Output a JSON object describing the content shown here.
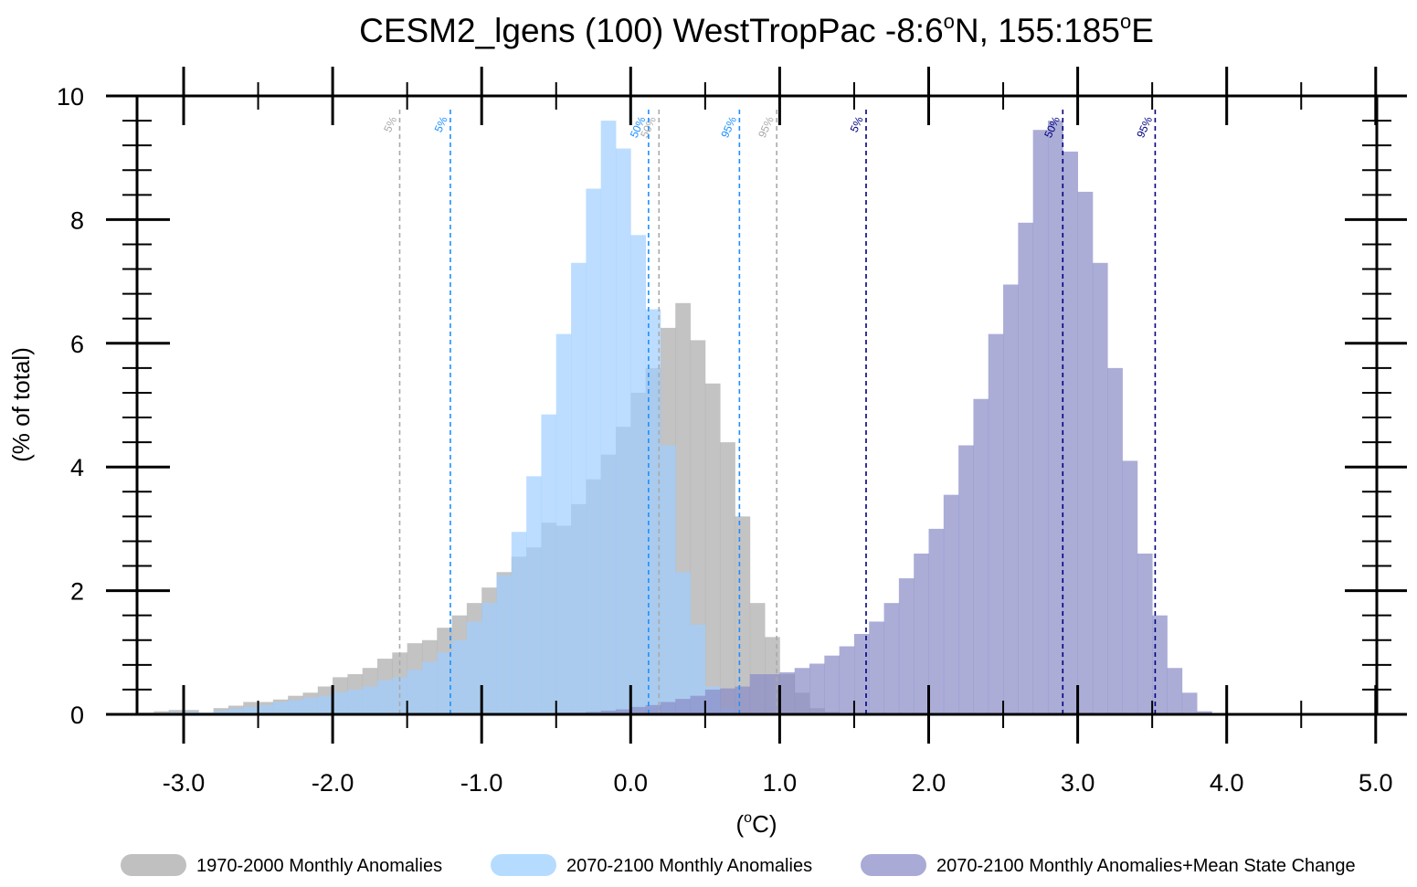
{
  "chart_data": {
    "type": "bar",
    "title": "CESM2_lgens (100) WestTropPac  -8:6°N, 155:185°E",
    "title_parts": {
      "prefix": "CESM2_lgens (100) WestTropPac  -8:6",
      "deg1": "o",
      "mid": "N, 155:185",
      "deg2": "o",
      "suffix": "E"
    },
    "xlabel": "(°C)",
    "xlabel_parts": {
      "open": "(",
      "deg": "o",
      "close": "C)"
    },
    "ylabel": "(% of total)",
    "xlim": [
      -3.3,
      5.0
    ],
    "ylim": [
      0,
      10
    ],
    "x_ticks": [
      -3.0,
      -2.0,
      -1.0,
      0.0,
      1.0,
      2.0,
      3.0,
      4.0,
      5.0
    ],
    "x_tick_labels": [
      "-3.0",
      "-2.0",
      "-1.0",
      "0.0",
      "1.0",
      "2.0",
      "3.0",
      "4.0",
      "5.0"
    ],
    "y_ticks": [
      0,
      2,
      4,
      6,
      8,
      10
    ],
    "y_tick_labels": [
      "0",
      "2",
      "4",
      "6",
      "8",
      "10"
    ],
    "bin_start": -3.3,
    "bin_width": 0.1,
    "series": [
      {
        "name": "1970-2000 Monthly Anomalies",
        "color": "#a9a9a9",
        "values": [
          0.03,
          0.05,
          0.07,
          0.07,
          0.03,
          0.1,
          0.14,
          0.2,
          0.2,
          0.24,
          0.3,
          0.35,
          0.45,
          0.6,
          0.65,
          0.75,
          0.9,
          1.0,
          1.15,
          1.2,
          1.4,
          1.6,
          1.8,
          2.05,
          2.3,
          2.55,
          2.7,
          3.1,
          3.05,
          3.4,
          3.8,
          4.2,
          4.65,
          5.2,
          5.6,
          6.25,
          6.65,
          6.05,
          5.35,
          4.4,
          3.2,
          1.8,
          1.25,
          0.65,
          0.35,
          0.1,
          0.04,
          0.02
        ]
      },
      {
        "name": "2070-2100 Monthly Anomalies",
        "color": "#9fcfff",
        "values": [
          0.01,
          0.02,
          0.03,
          0.04,
          0.03,
          0.06,
          0.09,
          0.12,
          0.15,
          0.2,
          0.23,
          0.27,
          0.3,
          0.36,
          0.4,
          0.45,
          0.55,
          0.6,
          0.72,
          0.85,
          1.0,
          1.2,
          1.5,
          1.8,
          2.25,
          2.95,
          3.85,
          4.85,
          6.15,
          7.3,
          8.5,
          9.6,
          9.15,
          7.75,
          6.55,
          4.35,
          2.3,
          1.45,
          0.45,
          0.1
        ]
      },
      {
        "name": "2070-2100 Monthly Anomalies+Mean State Change",
        "color": "#8b8ec8",
        "start_bin": 26,
        "values": [
          0.02,
          0.02,
          0.03,
          0.03,
          0.04,
          0.06,
          0.08,
          0.12,
          0.15,
          0.2,
          0.25,
          0.3,
          0.4,
          0.42,
          0.45,
          0.65,
          0.65,
          0.68,
          0.75,
          0.82,
          0.95,
          1.1,
          1.3,
          1.5,
          1.8,
          2.2,
          2.6,
          3.0,
          3.55,
          4.35,
          5.1,
          6.15,
          6.95,
          7.95,
          9.45,
          9.6,
          9.1,
          8.45,
          7.3,
          5.6,
          4.1,
          2.6,
          1.6,
          0.75,
          0.35,
          0.05,
          0.02,
          0.01
        ]
      }
    ],
    "percentile_lines": [
      {
        "series": "1970-2000 Monthly Anomalies",
        "label": "5%",
        "x": -1.55,
        "color": "#a9a9a9"
      },
      {
        "series": "1970-2000 Monthly Anomalies",
        "label": "50%",
        "x": 0.19,
        "color": "#a9a9a9"
      },
      {
        "series": "1970-2000 Monthly Anomalies",
        "label": "95%",
        "x": 0.98,
        "color": "#a9a9a9"
      },
      {
        "series": "2070-2100 Monthly Anomalies",
        "label": "5%",
        "x": -1.21,
        "color": "#1e90ff"
      },
      {
        "series": "2070-2100 Monthly Anomalies",
        "label": "50%",
        "x": 0.12,
        "color": "#1e90ff"
      },
      {
        "series": "2070-2100 Monthly Anomalies",
        "label": "95%",
        "x": 0.73,
        "color": "#1e90ff"
      },
      {
        "series": "2070-2100 Monthly Anomalies+Mean State Change",
        "label": "5%",
        "x": 1.58,
        "color": "#000080"
      },
      {
        "series": "2070-2100 Monthly Anomalies+Mean State Change",
        "label": "50%",
        "x": 2.9,
        "color": "#000080"
      },
      {
        "series": "2070-2100 Monthly Anomalies+Mean State Change",
        "label": "95%",
        "x": 3.52,
        "color": "#000080"
      }
    ],
    "legend": {
      "position": "bottom",
      "entries": [
        {
          "label": "1970-2000 Monthly Anomalies",
          "color": "#c0c0c0"
        },
        {
          "label": "2070-2100 Monthly Anomalies",
          "color": "#b5dcff"
        },
        {
          "label": "2070-2100 Monthly Anomalies+Mean State Change",
          "color": "#a9aad6"
        }
      ]
    }
  }
}
